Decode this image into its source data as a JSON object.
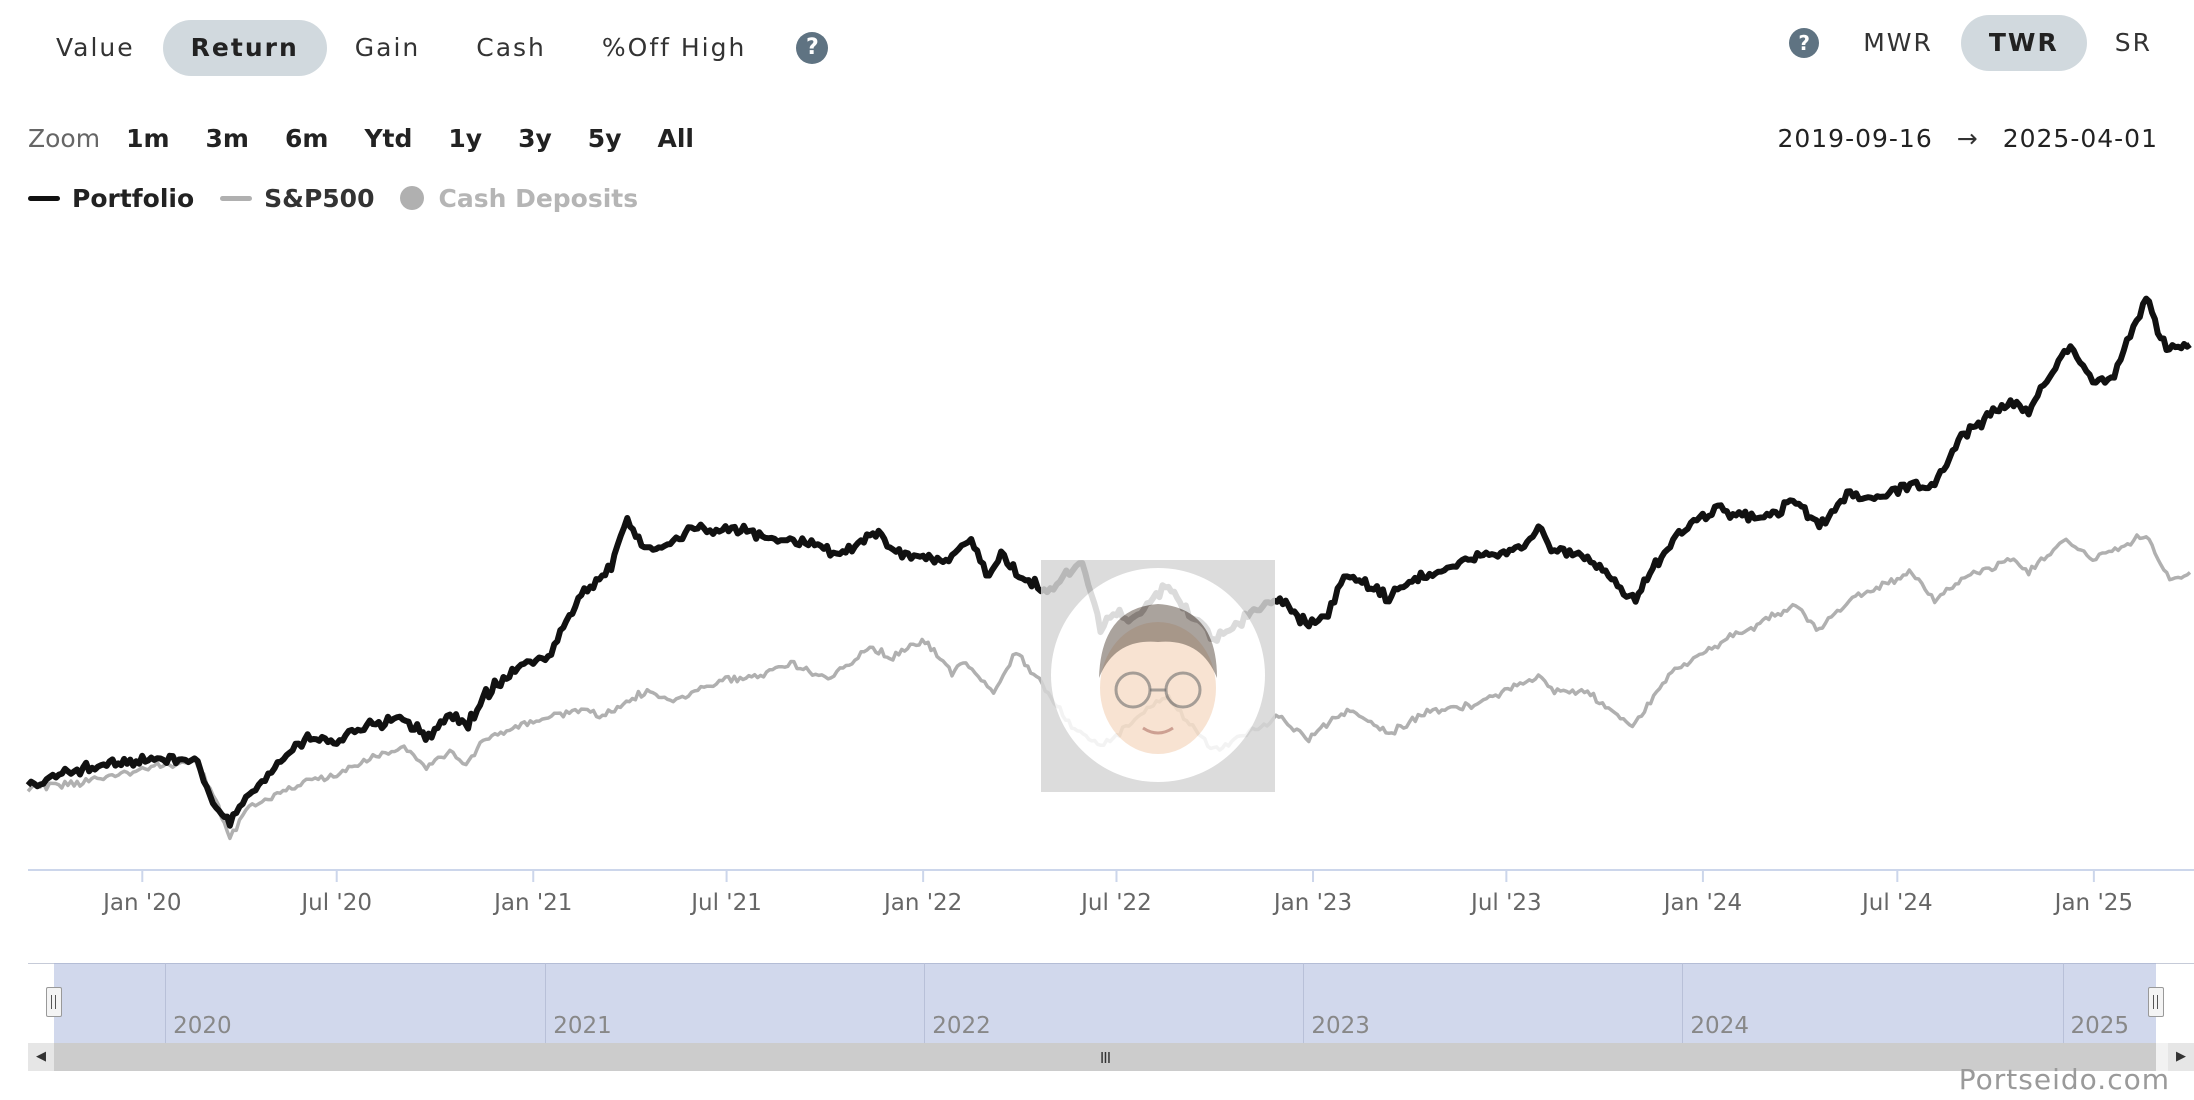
{
  "tabs": [
    {
      "label": "Value",
      "active": false
    },
    {
      "label": "Return",
      "active": true
    },
    {
      "label": "Gain",
      "active": false
    },
    {
      "label": "Cash",
      "active": false
    },
    {
      "label": "%Off High",
      "active": false
    }
  ],
  "help_glyph": "?",
  "return_types": [
    {
      "label": "MWR",
      "active": false
    },
    {
      "label": "TWR",
      "active": true
    },
    {
      "label": "SR",
      "active": false
    }
  ],
  "zoom": {
    "label": "Zoom",
    "options": [
      "1m",
      "3m",
      "6m",
      "Ytd",
      "1y",
      "3y",
      "5y",
      "All"
    ]
  },
  "range": {
    "start": "2019-09-16",
    "arrow": "→",
    "end": "2025-04-01"
  },
  "brand": "Portseido.com",
  "chart_data": {
    "type": "line",
    "x_start": "2019-09-16",
    "x_end": "2025-04-01",
    "x_ticks": [
      "Jan '20",
      "Jul '20",
      "Jan '21",
      "Jul '21",
      "Jan '22",
      "Jul '22",
      "Jan '23",
      "Jul '23",
      "Jan '24",
      "Jul '24",
      "Jan '25"
    ],
    "x_tick_dates": [
      "2020-01-01",
      "2020-07-01",
      "2021-01-01",
      "2021-07-01",
      "2022-01-01",
      "2022-07-01",
      "2023-01-01",
      "2023-07-01",
      "2024-01-01",
      "2024-07-01",
      "2025-01-01"
    ],
    "y_axis_visible": false,
    "grid": false,
    "legend_position": "top-left",
    "legend": [
      {
        "name": "Portfolio",
        "color": "#111111",
        "symbol": "line",
        "visible": true
      },
      {
        "name": "S&P500",
        "color": "#b0b0b0",
        "symbol": "line",
        "visible": true
      },
      {
        "name": "Cash Deposits",
        "color": "#b0b0b0",
        "symbol": "dot",
        "visible": false
      }
    ],
    "series": [
      {
        "name": "Portfolio",
        "color": "#111111",
        "points": [
          [
            "2019-09-16",
            0
          ],
          [
            "2019-10-15",
            3
          ],
          [
            "2019-11-15",
            5
          ],
          [
            "2019-12-15",
            6
          ],
          [
            "2020-01-15",
            7
          ],
          [
            "2020-02-19",
            7
          ],
          [
            "2020-03-10",
            -4
          ],
          [
            "2020-03-23",
            -8
          ],
          [
            "2020-04-10",
            -2
          ],
          [
            "2020-05-01",
            4
          ],
          [
            "2020-06-01",
            12
          ],
          [
            "2020-07-01",
            11
          ],
          [
            "2020-08-01",
            15
          ],
          [
            "2020-09-01",
            17
          ],
          [
            "2020-09-25",
            12
          ],
          [
            "2020-10-15",
            18
          ],
          [
            "2020-11-01",
            15
          ],
          [
            "2020-11-15",
            22
          ],
          [
            "2020-12-15",
            29
          ],
          [
            "2021-01-15",
            32
          ],
          [
            "2021-02-01",
            40
          ],
          [
            "2021-02-15",
            47
          ],
          [
            "2021-03-15",
            53
          ],
          [
            "2021-03-30",
            65
          ],
          [
            "2021-04-15",
            58
          ],
          [
            "2021-05-12",
            59
          ],
          [
            "2021-06-01",
            63
          ],
          [
            "2021-06-30",
            62
          ],
          [
            "2021-07-20",
            62
          ],
          [
            "2021-08-15",
            60
          ],
          [
            "2021-09-30",
            58
          ],
          [
            "2021-10-15",
            56
          ],
          [
            "2021-11-15",
            62
          ],
          [
            "2021-12-01",
            58
          ],
          [
            "2022-01-01",
            55
          ],
          [
            "2022-01-25",
            55
          ],
          [
            "2022-02-15",
            60
          ],
          [
            "2022-03-01",
            51
          ],
          [
            "2022-03-15",
            56
          ],
          [
            "2022-04-01",
            51
          ],
          [
            "2022-04-30",
            47
          ],
          [
            "2022-05-15",
            52
          ],
          [
            "2022-05-30",
            54
          ],
          [
            "2022-06-16",
            39
          ],
          [
            "2022-07-01",
            43
          ],
          [
            "2022-07-15",
            40
          ],
          [
            "2022-08-16",
            49
          ],
          [
            "2022-09-01",
            44
          ],
          [
            "2022-09-30",
            36
          ],
          [
            "2022-10-15",
            38
          ],
          [
            "2022-11-15",
            44
          ],
          [
            "2022-12-01",
            45
          ],
          [
            "2022-12-28",
            39
          ],
          [
            "2023-01-15",
            42
          ],
          [
            "2023-02-02",
            52
          ],
          [
            "2023-03-13",
            46
          ],
          [
            "2023-04-01",
            50
          ],
          [
            "2023-05-01",
            52
          ],
          [
            "2023-06-01",
            56
          ],
          [
            "2023-07-15",
            58
          ],
          [
            "2023-07-31",
            63
          ],
          [
            "2023-08-15",
            57
          ],
          [
            "2023-09-15",
            56
          ],
          [
            "2023-10-30",
            45
          ],
          [
            "2023-11-15",
            53
          ],
          [
            "2023-12-15",
            63
          ],
          [
            "2024-01-15",
            68
          ],
          [
            "2024-02-01",
            66
          ],
          [
            "2024-03-01",
            65
          ],
          [
            "2024-03-28",
            70
          ],
          [
            "2024-04-19",
            63
          ],
          [
            "2024-05-15",
            71
          ],
          [
            "2024-06-15",
            70
          ],
          [
            "2024-07-10",
            73
          ],
          [
            "2024-08-05",
            73
          ],
          [
            "2024-08-30",
            85
          ],
          [
            "2024-09-15",
            88
          ],
          [
            "2024-10-15",
            93
          ],
          [
            "2024-11-01",
            91
          ],
          [
            "2024-12-10",
            107
          ],
          [
            "2024-12-31",
            98
          ],
          [
            "2025-01-20",
            99
          ],
          [
            "2025-02-01",
            108
          ],
          [
            "2025-02-19",
            118
          ],
          [
            "2025-03-10",
            106
          ],
          [
            "2025-04-01",
            107
          ]
        ]
      },
      {
        "name": "S&P500",
        "color": "#b0b0b0",
        "points": [
          [
            "2019-09-16",
            0
          ],
          [
            "2019-11-01",
            1
          ],
          [
            "2019-12-01",
            3
          ],
          [
            "2020-01-15",
            5
          ],
          [
            "2020-02-19",
            7
          ],
          [
            "2020-03-10",
            -3
          ],
          [
            "2020-03-23",
            -12
          ],
          [
            "2020-04-10",
            -5
          ],
          [
            "2020-05-01",
            -2
          ],
          [
            "2020-06-08",
            2
          ],
          [
            "2020-07-01",
            3
          ],
          [
            "2020-08-01",
            7
          ],
          [
            "2020-09-02",
            10
          ],
          [
            "2020-09-23",
            5
          ],
          [
            "2020-10-15",
            9
          ],
          [
            "2020-10-30",
            5
          ],
          [
            "2020-11-15",
            12
          ],
          [
            "2021-01-01",
            16
          ],
          [
            "2021-02-15",
            19
          ],
          [
            "2021-03-04",
            17
          ],
          [
            "2021-04-15",
            23
          ],
          [
            "2021-05-12",
            21
          ],
          [
            "2021-06-30",
            26
          ],
          [
            "2021-07-30",
            27
          ],
          [
            "2021-09-02",
            30
          ],
          [
            "2021-10-04",
            26
          ],
          [
            "2021-11-15",
            34
          ],
          [
            "2021-12-01",
            31
          ],
          [
            "2021-12-31",
            36
          ],
          [
            "2022-01-28",
            28
          ],
          [
            "2022-02-10",
            30
          ],
          [
            "2022-03-08",
            23
          ],
          [
            "2022-03-29",
            33
          ],
          [
            "2022-05-20",
            15
          ],
          [
            "2022-06-16",
            10
          ],
          [
            "2022-07-01",
            13
          ],
          [
            "2022-08-16",
            22
          ],
          [
            "2022-09-30",
            9
          ],
          [
            "2022-11-30",
            17
          ],
          [
            "2022-12-28",
            12
          ],
          [
            "2023-02-02",
            19
          ],
          [
            "2023-03-13",
            13
          ],
          [
            "2023-04-15",
            18
          ],
          [
            "2023-06-01",
            20
          ],
          [
            "2023-07-31",
            27
          ],
          [
            "2023-08-15",
            23
          ],
          [
            "2023-09-15",
            23
          ],
          [
            "2023-10-27",
            15
          ],
          [
            "2023-11-30",
            27
          ],
          [
            "2023-12-29",
            32
          ],
          [
            "2024-02-01",
            37
          ],
          [
            "2024-03-28",
            44
          ],
          [
            "2024-04-19",
            38
          ],
          [
            "2024-05-20",
            46
          ],
          [
            "2024-07-15",
            52
          ],
          [
            "2024-08-05",
            45
          ],
          [
            "2024-08-30",
            50
          ],
          [
            "2024-10-15",
            55
          ],
          [
            "2024-11-01",
            52
          ],
          [
            "2024-12-06",
            60
          ],
          [
            "2024-12-31",
            55
          ],
          [
            "2025-01-15",
            57
          ],
          [
            "2025-02-19",
            61
          ],
          [
            "2025-03-13",
            50
          ],
          [
            "2025-04-01",
            52
          ]
        ]
      }
    ],
    "y_range": [
      -15,
      125
    ]
  },
  "navigator": {
    "years": [
      "2020",
      "2021",
      "2022",
      "2023",
      "2024",
      "2025"
    ],
    "year_dates": [
      "2020-01-01",
      "2021-01-01",
      "2022-01-01",
      "2023-01-01",
      "2024-01-01",
      "2025-01-01"
    ],
    "scroll_left": "◀",
    "scroll_right": "▶",
    "grip": "III"
  }
}
